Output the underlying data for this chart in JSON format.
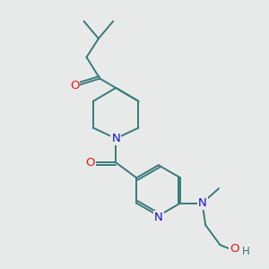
{
  "bg_color": "#e8eaea",
  "bond_color": "#3a7a7a",
  "bond_width": 1.4,
  "atom_colors": {
    "O": "#ee1111",
    "N": "#1111cc",
    "C": "#3a7a7a",
    "H": "#3a7a7a"
  },
  "font_size": 9.5
}
